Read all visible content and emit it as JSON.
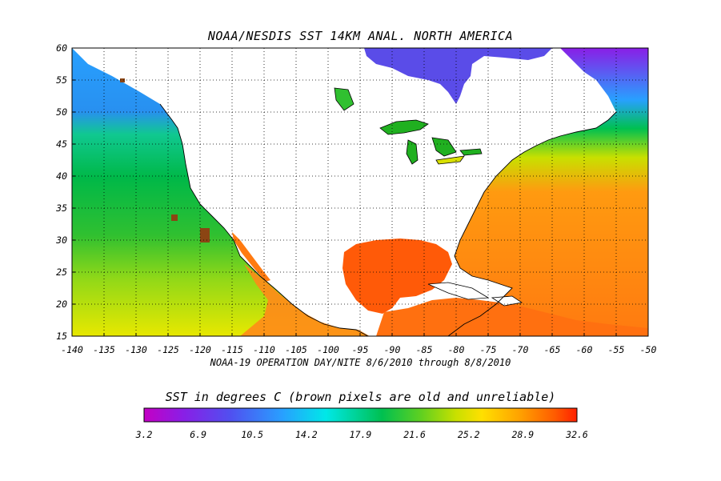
{
  "map": {
    "title": "NOAA/NESDIS SST 14KM ANAL. NORTH AMERICA",
    "subtitle": "NOAA-19 OPERATION DAY/NITE  8/6/2010 through 8/8/2010",
    "lon_range": [
      -140,
      -50
    ],
    "lat_range": [
      15,
      60
    ],
    "lon_ticks": [
      "-140",
      "-135",
      "-130",
      "-125",
      "-120",
      "-115",
      "-110",
      "-105",
      "-100",
      "-95",
      "-90",
      "-85",
      "-80",
      "-75",
      "-70",
      "-65",
      "-60",
      "-55",
      "-50"
    ],
    "lat_ticks": [
      "60",
      "55",
      "50",
      "45",
      "40",
      "35",
      "30",
      "25",
      "20",
      "15"
    ],
    "grid": "dotted"
  },
  "colorbar": {
    "title": "SST in degrees C (brown pixels are old and unreliable)",
    "labels": [
      "3.2",
      "6.9",
      "10.5",
      "14.2",
      "17.9",
      "21.6",
      "25.2",
      "28.9",
      "32.6"
    ],
    "colors": [
      "#c400c4",
      "#8a1ee6",
      "#5050f0",
      "#28a0ff",
      "#00e8e8",
      "#00c050",
      "#60d020",
      "#c8e000",
      "#ffe000",
      "#ffa000",
      "#ff5a00",
      "#ff2000"
    ],
    "missing_color": "#8b4513"
  }
}
